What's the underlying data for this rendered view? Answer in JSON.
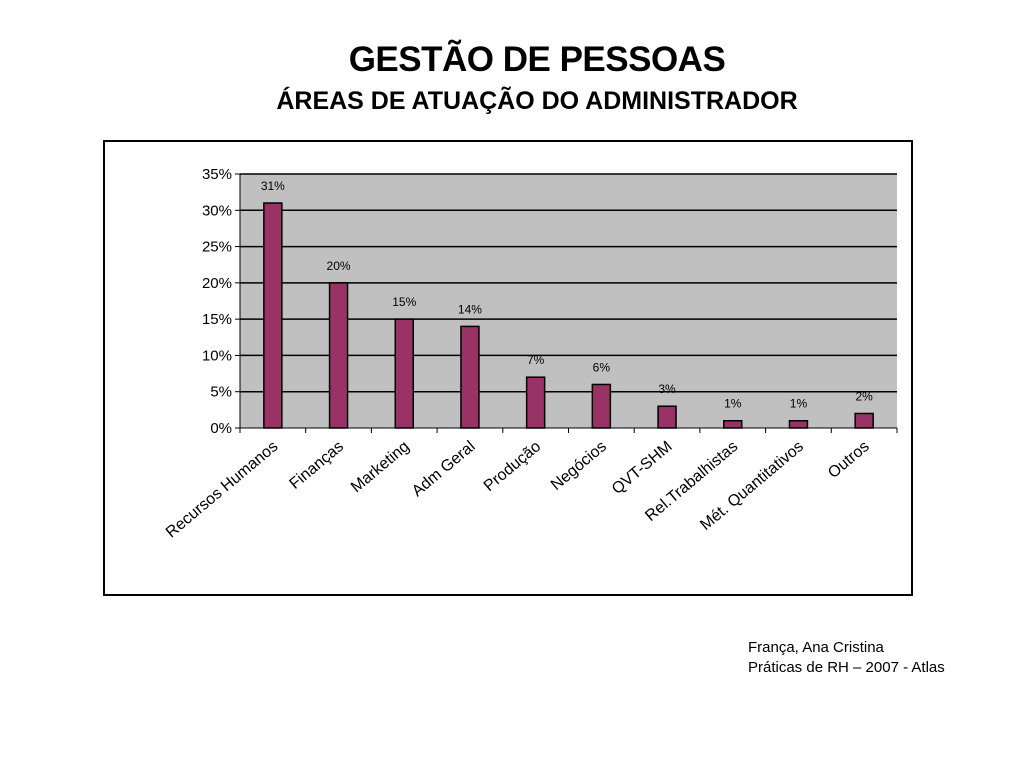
{
  "header": {
    "title": "GESTÃO DE PESSOAS",
    "subtitle": "ÁREAS DE ATUAÇÃO DO ADMINISTRADOR"
  },
  "source": {
    "line1": "França, Ana Cristina",
    "line2": "Práticas de RH – 2007 - Atlas"
  },
  "colors": {
    "bar": "#993366",
    "plot_background": "#c0c0c0",
    "gridline": "#000000"
  },
  "chart_data": {
    "type": "bar",
    "title": "",
    "xlabel": "",
    "ylabel": "",
    "ylim": [
      0,
      35
    ],
    "yticks": [
      "0%",
      "5%",
      "10%",
      "15%",
      "20%",
      "25%",
      "30%",
      "35%"
    ],
    "grid": true,
    "categories": [
      "Recursos Humanos",
      "Finanças",
      "Marketing",
      "Adm Geral",
      "Produção",
      "Negócios",
      "QVT-SHM",
      "Rel.Trabalhistas",
      "Mét. Quantitativos",
      "Outros"
    ],
    "values": [
      31,
      20,
      15,
      14,
      7,
      6,
      3,
      1,
      1,
      2
    ],
    "data_labels": [
      "31%",
      "20%",
      "15%",
      "14%",
      "7%",
      "6%",
      "3%",
      "1%",
      "1%",
      "2%"
    ]
  }
}
